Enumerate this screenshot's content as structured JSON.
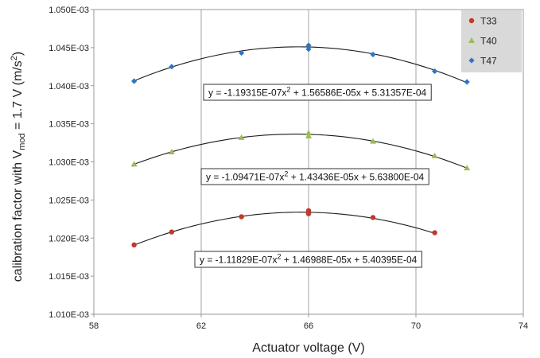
{
  "chart_data": {
    "type": "scatter",
    "xlabel": "Actuator voltage (V)",
    "ylabel": {
      "prefix": "calibration factor with V",
      "subscript": "mod",
      "middle": " = 1.7 V (m/s",
      "superscript": "2",
      "suffix": ")"
    },
    "xlim": [
      58,
      74
    ],
    "ylim": [
      0.00101,
      0.00105
    ],
    "xticks": [
      58,
      62,
      66,
      70,
      74
    ],
    "yticks": [
      0.00101,
      0.001015,
      0.00102,
      0.001025,
      0.00103,
      0.001035,
      0.00104,
      0.001045,
      0.00105
    ],
    "ytick_labels": [
      "1.010E-03",
      "1.015E-03",
      "1.020E-03",
      "1.025E-03",
      "1.030E-03",
      "1.035E-03",
      "1.040E-03",
      "1.045E-03",
      "1.050E-03"
    ],
    "grid": "vertical",
    "legend_position": "top-right",
    "series": [
      {
        "name": "T33",
        "color": "#c0392b",
        "marker": "circle",
        "points": [
          [
            59.5,
            0.0010191
          ],
          [
            60.9,
            0.0010208
          ],
          [
            63.5,
            0.0010228
          ],
          [
            66.0,
            0.0010236
          ],
          [
            66.0,
            0.0010232
          ],
          [
            68.4,
            0.0010227
          ],
          [
            70.7,
            0.0010207
          ]
        ],
        "fit": {
          "a": -1.11829e-07,
          "b": 1.46988e-05,
          "c": 0.000540395,
          "x_range": [
            59.5,
            70.7
          ]
        },
        "equation": {
          "pre": "y = -1.11829E-07x",
          "sup": "2",
          "post": " + 1.46988E-05x + 5.40395E-04"
        }
      },
      {
        "name": "T40",
        "color": "#9bbb59",
        "marker": "triangle",
        "points": [
          [
            59.5,
            0.0010297
          ],
          [
            60.9,
            0.0010313
          ],
          [
            63.5,
            0.0010332
          ],
          [
            66.0,
            0.0010338
          ],
          [
            66.0,
            0.0010334
          ],
          [
            68.4,
            0.0010327
          ],
          [
            70.7,
            0.0010308
          ],
          [
            71.9,
            0.0010292
          ]
        ],
        "fit": {
          "a": -1.09471e-07,
          "b": 1.43436e-05,
          "c": 0.0005638,
          "x_range": [
            59.5,
            71.9
          ]
        },
        "equation": {
          "pre": "y = -1.09471E-07x",
          "sup": "2",
          "post": " + 1.43436E-05x + 5.63800E-04"
        }
      },
      {
        "name": "T47",
        "color": "#2e75c9",
        "marker": "diamond",
        "points": [
          [
            59.5,
            0.0010406
          ],
          [
            60.9,
            0.0010425
          ],
          [
            63.5,
            0.0010443
          ],
          [
            66.0,
            0.0010453
          ],
          [
            66.0,
            0.0010448
          ],
          [
            68.4,
            0.0010441
          ],
          [
            70.7,
            0.0010419
          ],
          [
            71.9,
            0.0010405
          ]
        ],
        "fit": {
          "a": -1.19315e-07,
          "b": 1.56586e-05,
          "c": 0.000531357,
          "x_range": [
            59.5,
            71.9
          ]
        },
        "equation": {
          "pre": "y = -1.19315E-07x",
          "sup": "2",
          "post": " + 1.56586E-05x + 5.31357E-04"
        }
      }
    ]
  }
}
